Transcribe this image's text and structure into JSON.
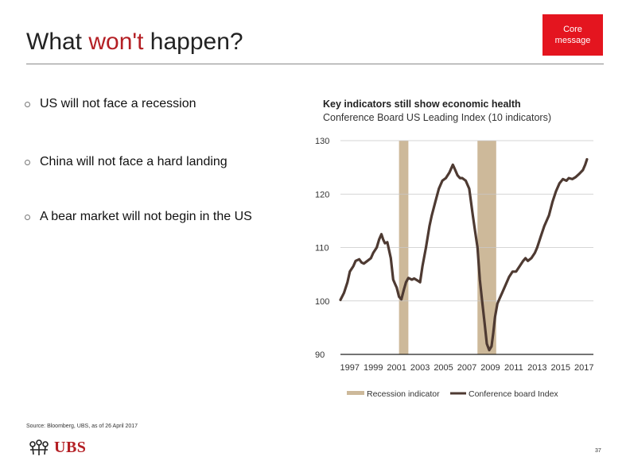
{
  "slide": {
    "title_start": "What ",
    "title_accent": "won't",
    "title_end": " happen?",
    "badge_line1": "Core",
    "badge_line2": "message",
    "bullets": [
      "US will not face a recession",
      "China will not face a hard landing",
      "A bear market will not begin in the US"
    ],
    "chart_heading": "Key indicators still show economic health",
    "chart_subheading": "Conference Board US Leading Index (10 indicators)",
    "source": "Source: Bloomberg, UBS, as of 26 April 2017",
    "logo_text": "UBS",
    "page_number": "37",
    "accent_color": "#b41f24",
    "badge_color": "#e4151f"
  },
  "chart_data": {
    "type": "line",
    "title": "Key indicators still show economic health",
    "subtitle": "Conference Board US Leading Index (10 indicators)",
    "ylim": [
      90,
      130
    ],
    "yticks": [
      130,
      120,
      110,
      100,
      90
    ],
    "xlim": [
      1996.2,
      2017.8
    ],
    "xticks": [
      "1997",
      "1999",
      "2001",
      "2003",
      "2005",
      "2007",
      "2009",
      "2011",
      "2013",
      "2015",
      "2017"
    ],
    "grid": true,
    "legend_position": "bottom",
    "series": [
      {
        "name": "Conference board Index",
        "color": "#4e3a32",
        "x": [
          1996.2,
          1996.5,
          1996.8,
          1997.0,
          1997.3,
          1997.5,
          1997.8,
          1998.0,
          1998.2,
          1998.5,
          1998.8,
          1999.0,
          1999.3,
          1999.5,
          1999.7,
          1999.85,
          2000.0,
          2000.2,
          2000.5,
          2000.7,
          2000.9,
          2001.0,
          2001.2,
          2001.4,
          2001.6,
          2001.8,
          2002.0,
          2002.3,
          2002.5,
          2002.8,
          2003.0,
          2003.2,
          2003.5,
          2003.8,
          2004.0,
          2004.3,
          2004.6,
          2004.9,
          2005.2,
          2005.5,
          2005.8,
          2006.0,
          2006.2,
          2006.4,
          2006.6,
          2006.9,
          2007.2,
          2007.5,
          2007.7,
          2007.9,
          2008.1,
          2008.3,
          2008.5,
          2008.7,
          2008.9,
          2009.1,
          2009.25,
          2009.4,
          2009.6,
          2009.8,
          2010.0,
          2010.3,
          2010.6,
          2010.9,
          2011.2,
          2011.5,
          2011.8,
          2012.0,
          2012.2,
          2012.5,
          2012.8,
          2013.0,
          2013.3,
          2013.6,
          2014.0,
          2014.3,
          2014.6,
          2014.9,
          2015.2,
          2015.5,
          2015.7,
          2016.0,
          2016.3,
          2016.6,
          2016.9,
          2017.1,
          2017.25
        ],
        "values": [
          100.2,
          101.5,
          103.5,
          105.5,
          106.5,
          107.5,
          107.8,
          107.2,
          107.0,
          107.5,
          108.0,
          109.0,
          110.0,
          111.5,
          112.5,
          111.5,
          110.8,
          111.0,
          108.0,
          104.0,
          103.0,
          102.5,
          100.8,
          100.3,
          102.0,
          103.5,
          104.3,
          104.0,
          104.2,
          103.8,
          103.5,
          106.5,
          110.0,
          114.0,
          116.0,
          118.5,
          121.0,
          122.5,
          123.0,
          124.0,
          125.5,
          124.5,
          123.5,
          123.0,
          123.0,
          122.5,
          121.0,
          116.0,
          113.0,
          110.0,
          104.0,
          100.0,
          96.0,
          92.0,
          90.8,
          91.5,
          94.0,
          97.0,
          99.5,
          100.5,
          101.5,
          103.0,
          104.5,
          105.5,
          105.5,
          106.5,
          107.5,
          108.0,
          107.5,
          108.0,
          109.0,
          110.0,
          112.0,
          114.0,
          116.0,
          118.5,
          120.5,
          122.0,
          122.8,
          122.5,
          123.0,
          122.8,
          123.2,
          123.8,
          124.5,
          125.5,
          126.5
        ]
      }
    ],
    "recession_indicator": {
      "name": "Recession indicator",
      "color": "#cdb99a",
      "periods": [
        [
          2001.2,
          2002.0
        ],
        [
          2007.9,
          2009.5
        ]
      ]
    }
  }
}
